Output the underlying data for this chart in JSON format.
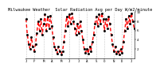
{
  "title": "Milwaukee Weather  Solar Radiation Avg per Day W/m2/minute",
  "y_values": [
    8.5,
    5.0,
    3.0,
    2.0,
    4.5,
    2.5,
    1.5,
    3.0,
    5.5,
    8.0,
    6.0,
    8.5,
    5.0,
    7.5,
    9.5,
    6.0,
    9.0,
    6.5,
    9.2,
    7.0,
    4.5,
    2.5,
    1.8,
    1.0,
    2.5,
    1.5,
    0.8,
    1.5,
    3.5,
    6.0,
    9.0,
    7.0,
    9.5,
    7.5,
    9.8,
    8.0,
    6.5,
    5.0,
    7.5,
    5.5,
    8.0,
    6.0,
    4.0,
    2.0,
    1.2,
    2.0,
    1.0,
    2.5,
    1.5,
    3.5,
    5.0,
    7.5,
    9.0,
    7.0,
    9.5,
    7.5,
    9.8,
    8.5,
    6.0,
    8.5,
    6.5,
    9.0,
    7.5,
    5.0,
    3.0,
    1.5,
    2.5,
    1.0,
    1.5,
    0.8,
    2.0,
    1.2,
    3.5,
    6.0,
    8.5,
    6.5,
    9.2,
    7.5,
    9.8,
    8.0,
    6.5
  ],
  "ylim": [
    0,
    10
  ],
  "ytick_positions": [
    2,
    4,
    6,
    8,
    10
  ],
  "ytick_labels": [
    "2",
    "4",
    "6",
    "8",
    "10"
  ],
  "x_tick_positions": [
    0,
    6,
    13,
    19,
    26,
    32,
    39,
    45,
    52,
    58,
    65,
    71,
    78
  ],
  "x_tick_labels": [
    "J",
    "F",
    "M",
    "A",
    "M",
    "J",
    "J",
    "A",
    "S",
    "O",
    "N",
    "D",
    "J"
  ],
  "grid_x_positions": [
    0,
    6,
    13,
    19,
    26,
    32,
    39,
    45,
    52,
    58,
    65,
    71,
    78
  ],
  "line_color": "#ff0000",
  "dot_color": "#000000",
  "grid_color": "#999999",
  "background_color": "#ffffff",
  "title_fontsize": 3.8,
  "tick_fontsize": 3.0
}
